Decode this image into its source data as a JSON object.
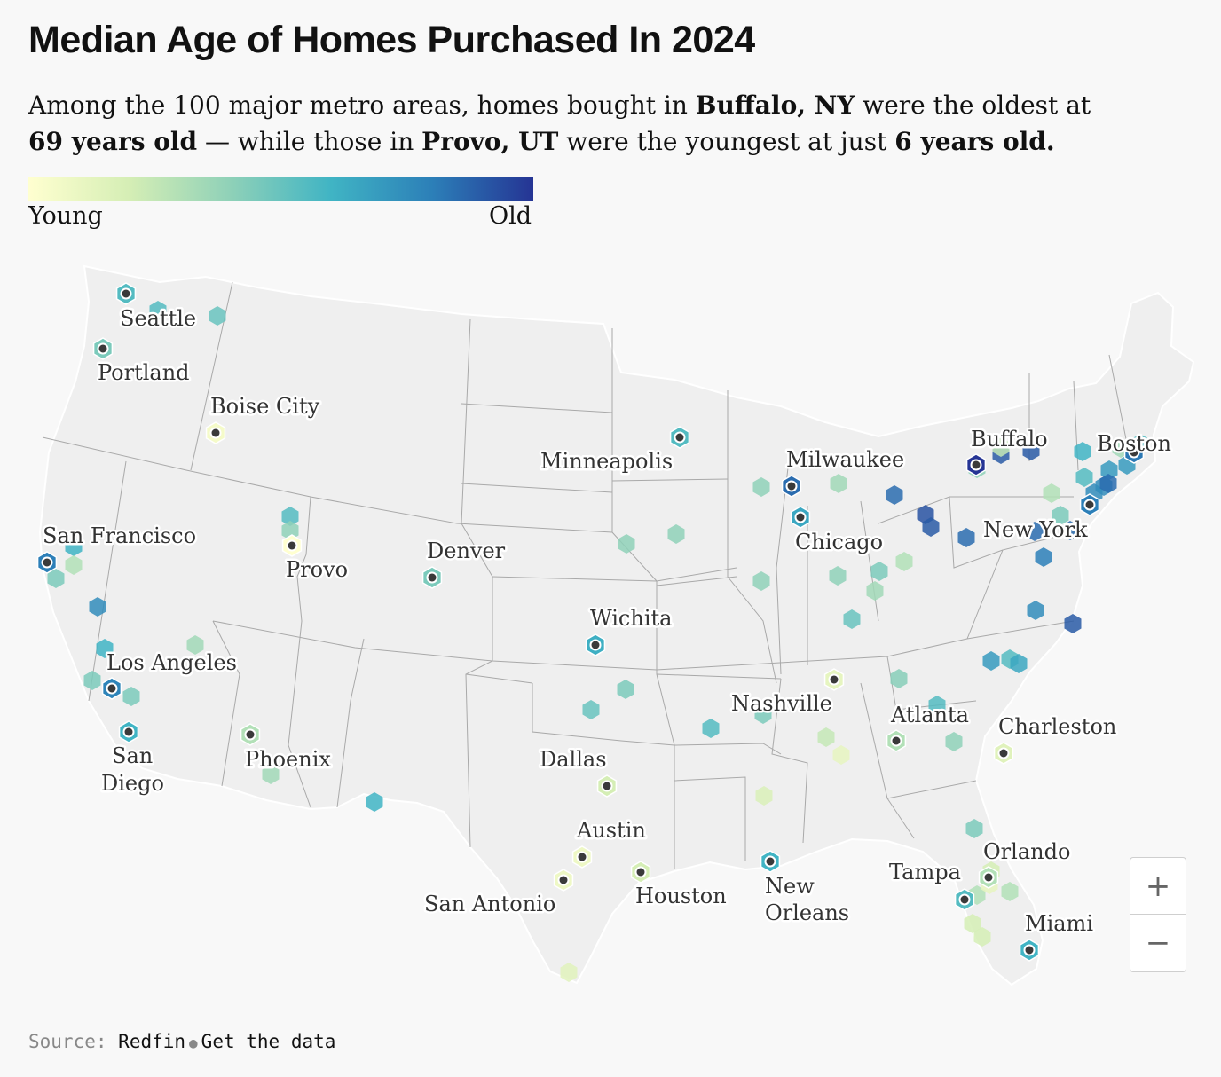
{
  "title": "Median Age of Homes Purchased In 2024",
  "subtitle": {
    "p1": "Among the 100 major metro areas, homes bought in ",
    "b1": "Buffalo, NY",
    "p2": " were the oldest at ",
    "b2": "69 years old",
    "p3": " — while those in ",
    "b3": "Provo, UT",
    "p4": " were the youngest at just ",
    "b4": "6 years old."
  },
  "legend": {
    "low": "Young",
    "high": "Old",
    "colors": [
      "#ffffd0",
      "#d5eeb5",
      "#8fd1b8",
      "#40b4c4",
      "#2c7fb8",
      "#253494"
    ]
  },
  "cities": [
    {
      "name": "Seattle",
      "value": 0.55
    },
    {
      "name": "Portland",
      "value": 0.45
    },
    {
      "name": "Boise City",
      "value": 0.05
    },
    {
      "name": "San Francisco",
      "value": 0.8
    },
    {
      "name": "Provo",
      "value": 0.0
    },
    {
      "name": "Denver",
      "value": 0.45
    },
    {
      "name": "Los Angeles",
      "value": 0.78
    },
    {
      "name": "San Diego",
      "value": 0.6
    },
    {
      "name": "Phoenix",
      "value": 0.3
    },
    {
      "name": "Minneapolis",
      "value": 0.55
    },
    {
      "name": "Milwaukee",
      "value": 0.85
    },
    {
      "name": "Chicago",
      "value": 0.65
    },
    {
      "name": "Wichita",
      "value": 0.62
    },
    {
      "name": "Buffalo",
      "value": 1.0
    },
    {
      "name": "Boston",
      "value": 0.82
    },
    {
      "name": "New York",
      "value": 0.8
    },
    {
      "name": "Nashville",
      "value": 0.12
    },
    {
      "name": "Atlanta",
      "value": 0.3
    },
    {
      "name": "Charleston",
      "value": 0.15
    },
    {
      "name": "Dallas",
      "value": 0.2
    },
    {
      "name": "Austin",
      "value": 0.08
    },
    {
      "name": "San Antonio",
      "value": 0.08
    },
    {
      "name": "Houston",
      "value": 0.2
    },
    {
      "name": "New Orleans",
      "value": 0.6
    },
    {
      "name": "Orlando",
      "value": 0.3
    },
    {
      "name": "Tampa",
      "value": 0.55
    },
    {
      "name": "Miami",
      "value": 0.6
    }
  ],
  "other_metros": [
    0.55,
    0.5,
    0.6,
    0.45,
    0.75,
    0.6,
    0.45,
    0.45,
    0.35,
    0.35,
    0.55,
    0.4,
    0.3,
    0.6,
    0.4,
    0.4,
    0.45,
    0.5,
    0.55,
    0.4,
    0.35,
    0.85,
    0.9,
    0.9,
    0.92,
    0.9,
    0.85,
    0.6,
    0.7,
    0.55,
    0.4,
    0.3,
    0.45,
    0.35,
    0.5,
    0.4,
    0.3,
    0.45,
    0.75,
    0.75,
    0.85,
    0.8,
    0.85,
    0.75,
    0.9,
    0.7,
    0.55,
    0.65,
    0.42,
    0.55,
    0.4,
    0.25,
    0.12,
    0.18,
    0.45,
    0.45,
    0.2,
    0.3,
    0.3,
    0.2,
    0.2,
    0.15,
    0.35,
    0.55,
    0.7,
    0.4,
    0.12,
    0.25,
    0.85
  ],
  "zoom": {
    "in": "+",
    "out": "−"
  },
  "source": {
    "label": "Source:",
    "name": "Redfin",
    "link": "Get the data"
  }
}
